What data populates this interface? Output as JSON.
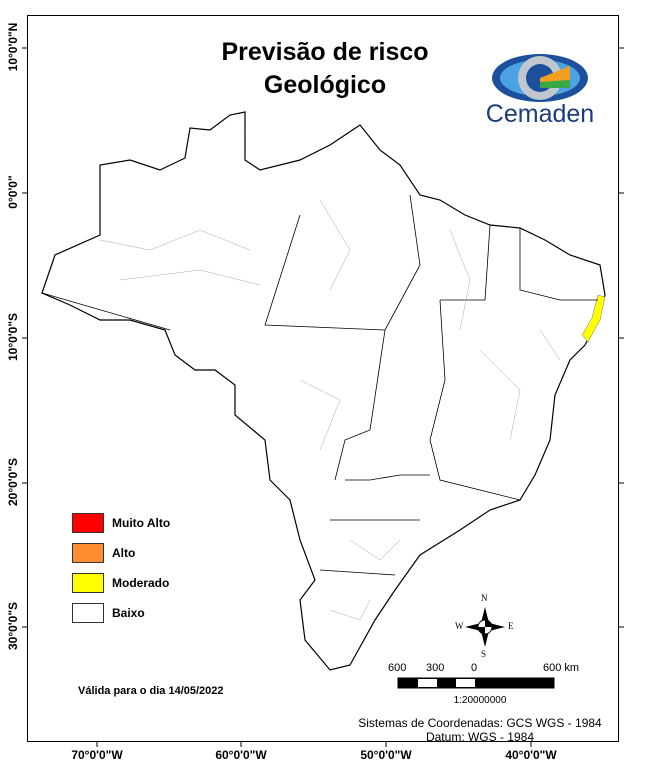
{
  "title": [
    "Previsão de risco",
    "Geológico"
  ],
  "logo": {
    "name": "Cemaden",
    "icon": "cemaden-eye-logo"
  },
  "axes": {
    "y_ticks": [
      "10°0'0\"N",
      "0°0'0\"",
      "10°0'0\"S",
      "20°0'0\"S",
      "30°0'0\"S"
    ],
    "x_ticks": [
      "70°0'0\"W",
      "60°0'0\"W",
      "50°0'0\"W",
      "40°0'0\"W"
    ]
  },
  "legend": [
    {
      "label": "Muito Alto",
      "color": "#ff0000"
    },
    {
      "label": "Alto",
      "color": "#ff8c2e"
    },
    {
      "label": "Moderado",
      "color": "#ffff00"
    },
    {
      "label": "Baixo",
      "color": "#ffffff"
    }
  ],
  "valid_text": "Válida para o dia 14/05/2022",
  "compass": {
    "n": "N",
    "s": "S",
    "e": "E",
    "w": "W"
  },
  "scale": {
    "labels": [
      "600",
      "300",
      "0",
      "600 km"
    ],
    "ratio": "1:20000000"
  },
  "coords": [
    "Sistemas de Coordenadas: GCS WGS - 1984",
    "Datum: WGS - 1984"
  ]
}
